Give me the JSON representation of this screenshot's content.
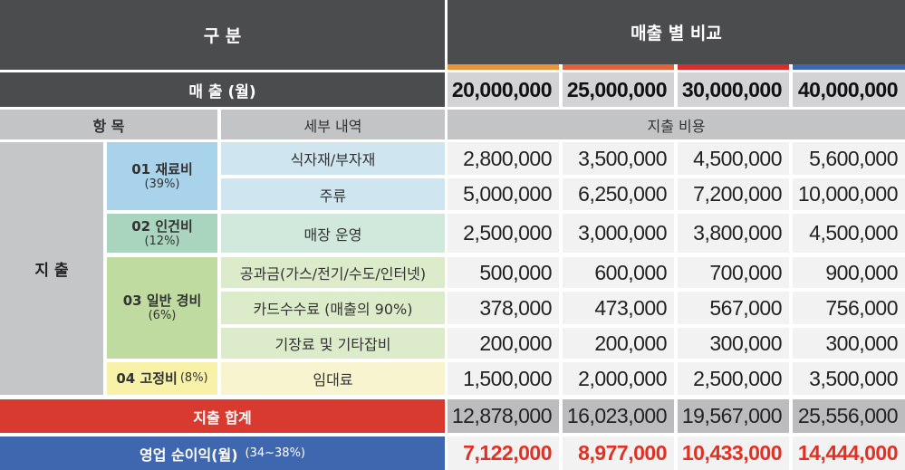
{
  "header": {
    "gubun": "구 분",
    "compare": "매출 별 비교",
    "sales_label": "매 출 (월)",
    "sales": [
      "20,000,000",
      "25,000,000",
      "30,000,000",
      "40,000,000"
    ],
    "bar_colors": [
      "#e8953a",
      "#e0623a",
      "#d42e2e",
      "#3f67b0"
    ]
  },
  "subheader": {
    "item": "항 목",
    "detail": "세부 내역",
    "cost": "지출 비용"
  },
  "expense_label": "지 출",
  "categories": [
    {
      "name": "01 재료비",
      "pct": "(39%)",
      "color": "#a8d3ea"
    },
    {
      "name": "02 인건비",
      "pct": "(12%)",
      "color": "#a9d5bf"
    },
    {
      "name": "03 일반 경비",
      "pct": "(6%)",
      "color": "#bfdba0"
    },
    {
      "name": "04 고정비",
      "pct": "(8%)",
      "color": "#f7f2a7"
    }
  ],
  "rows": [
    {
      "detail": "식자재/부자재",
      "values": [
        "2,800,000",
        "3,500,000",
        "4,500,000",
        "5,600,000"
      ]
    },
    {
      "detail": "주류",
      "values": [
        "5,000,000",
        "6,250,000",
        "7,200,000",
        "10,000,000"
      ]
    },
    {
      "detail": "매장 운영",
      "values": [
        "2,500,000",
        "3,000,000",
        "3,800,000",
        "4,500,000"
      ]
    },
    {
      "detail": "공과금(가스/전기/수도/인터넷)",
      "values": [
        "500,000",
        "600,000",
        "700,000",
        "900,000"
      ]
    },
    {
      "detail": "카드수수료 (매출의 90%)",
      "values": [
        "378,000",
        "473,000",
        "567,000",
        "756,000"
      ]
    },
    {
      "detail": "기장료 및 기타잡비",
      "values": [
        "200,000",
        "200,000",
        "300,000",
        "300,000"
      ]
    },
    {
      "detail": "임대료",
      "values": [
        "1,500,000",
        "2,000,000",
        "2,500,000",
        "3,500,000"
      ]
    }
  ],
  "total": {
    "label": "지출 합계",
    "values": [
      "12,878,000",
      "16,023,000",
      "19,567,000",
      "25,556,000"
    ],
    "color": "#d93a2f"
  },
  "profit": {
    "label": "영업 순이익(월)",
    "range": "(34~38%)",
    "values": [
      "7,122,000",
      "8,977,000",
      "10,433,000",
      "14,444,000"
    ],
    "color": "#3f67b0",
    "value_color": "#e03124"
  }
}
